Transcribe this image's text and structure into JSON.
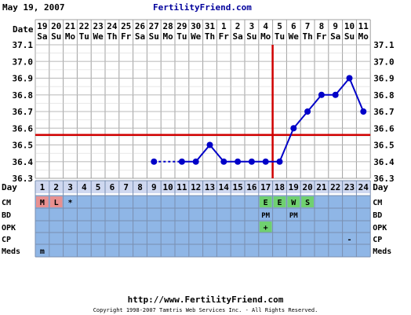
{
  "header": {
    "date": "May 19, 2007",
    "site": "FertilityFriend.com"
  },
  "footer": {
    "url": "http://www.FertilityFriend.com",
    "copyright": "Copyright 1998-2007 Tamtris Web Services Inc. - All Rights Reserved."
  },
  "row_labels": {
    "date": "Date",
    "day": "Day",
    "cm": "CM",
    "bd": "BD",
    "opk": "OPK",
    "cp": "CP",
    "meds": "Meds"
  },
  "colors": {
    "grid": "#a0a0a0",
    "plot_bg": "#ffffff",
    "line": "#0000c8",
    "coverline": "#d00000",
    "table_bg": "#8fb6e6",
    "day_bg": "#cfd8f0",
    "cm_m": "#e89090",
    "cm_ew": "#70d070",
    "opk_pos": "#70d070"
  },
  "chart_data": {
    "type": "line",
    "title": "",
    "ylim": [
      36.3,
      37.1
    ],
    "yticks": [
      "37.1",
      "37.0",
      "36.9",
      "36.8",
      "36.7",
      "36.6",
      "36.5",
      "36.4",
      "36.3"
    ],
    "dates": [
      "19",
      "20",
      "21",
      "22",
      "23",
      "24",
      "25",
      "26",
      "27",
      "28",
      "29",
      "30",
      "31",
      "1",
      "2",
      "3",
      "4",
      "5",
      "6",
      "7",
      "8",
      "9",
      "10",
      "11"
    ],
    "weekdays": [
      "Sa",
      "Su",
      "Mo",
      "Tu",
      "We",
      "Th",
      "Fr",
      "Sa",
      "Su",
      "Mo",
      "Tu",
      "We",
      "Th",
      "Fr",
      "Sa",
      "Su",
      "Mo",
      "Tu",
      "We",
      "Th",
      "Fr",
      "Sa",
      "Su",
      "Mo"
    ],
    "days": [
      "1",
      "2",
      "3",
      "4",
      "5",
      "6",
      "7",
      "8",
      "9",
      "10",
      "11",
      "12",
      "13",
      "14",
      "15",
      "16",
      "17",
      "18",
      "19",
      "20",
      "21",
      "22",
      "23",
      "24"
    ],
    "temps": [
      null,
      null,
      null,
      null,
      null,
      null,
      null,
      null,
      36.4,
      null,
      36.4,
      36.4,
      36.5,
      36.4,
      36.4,
      36.4,
      36.4,
      36.4,
      36.6,
      36.7,
      36.8,
      36.8,
      36.9,
      36.7
    ],
    "coverline": 36.56,
    "ovulation_day": 18,
    "grid": true,
    "cm": [
      "M",
      "L",
      "*",
      "",
      "",
      "",
      "",
      "",
      "",
      "",
      "",
      "",
      "",
      "",
      "",
      "",
      "E",
      "E",
      "W",
      "S",
      "",
      "",
      "",
      ""
    ],
    "bd": [
      "",
      "",
      "",
      "",
      "",
      "",
      "",
      "",
      "",
      "",
      "",
      "",
      "",
      "",
      "",
      "",
      "PM",
      "",
      "PM",
      "",
      "",
      "",
      "",
      ""
    ],
    "opk": [
      "",
      "",
      "",
      "",
      "",
      "",
      "",
      "",
      "",
      "",
      "",
      "",
      "",
      "",
      "",
      "",
      "+",
      "",
      "",
      "",
      "",
      "",
      "",
      ""
    ],
    "cp": [
      "",
      "",
      "",
      "",
      "",
      "",
      "",
      "",
      "",
      "",
      "",
      "",
      "",
      "",
      "",
      "",
      "",
      "",
      "",
      "",
      "",
      "",
      "-",
      ""
    ],
    "meds": [
      "m",
      "",
      "",
      "",
      "",
      "",
      "",
      "",
      "",
      "",
      "",
      "",
      "",
      "",
      "",
      "",
      "",
      "",
      "",
      "",
      "",
      "",
      "",
      ""
    ]
  }
}
